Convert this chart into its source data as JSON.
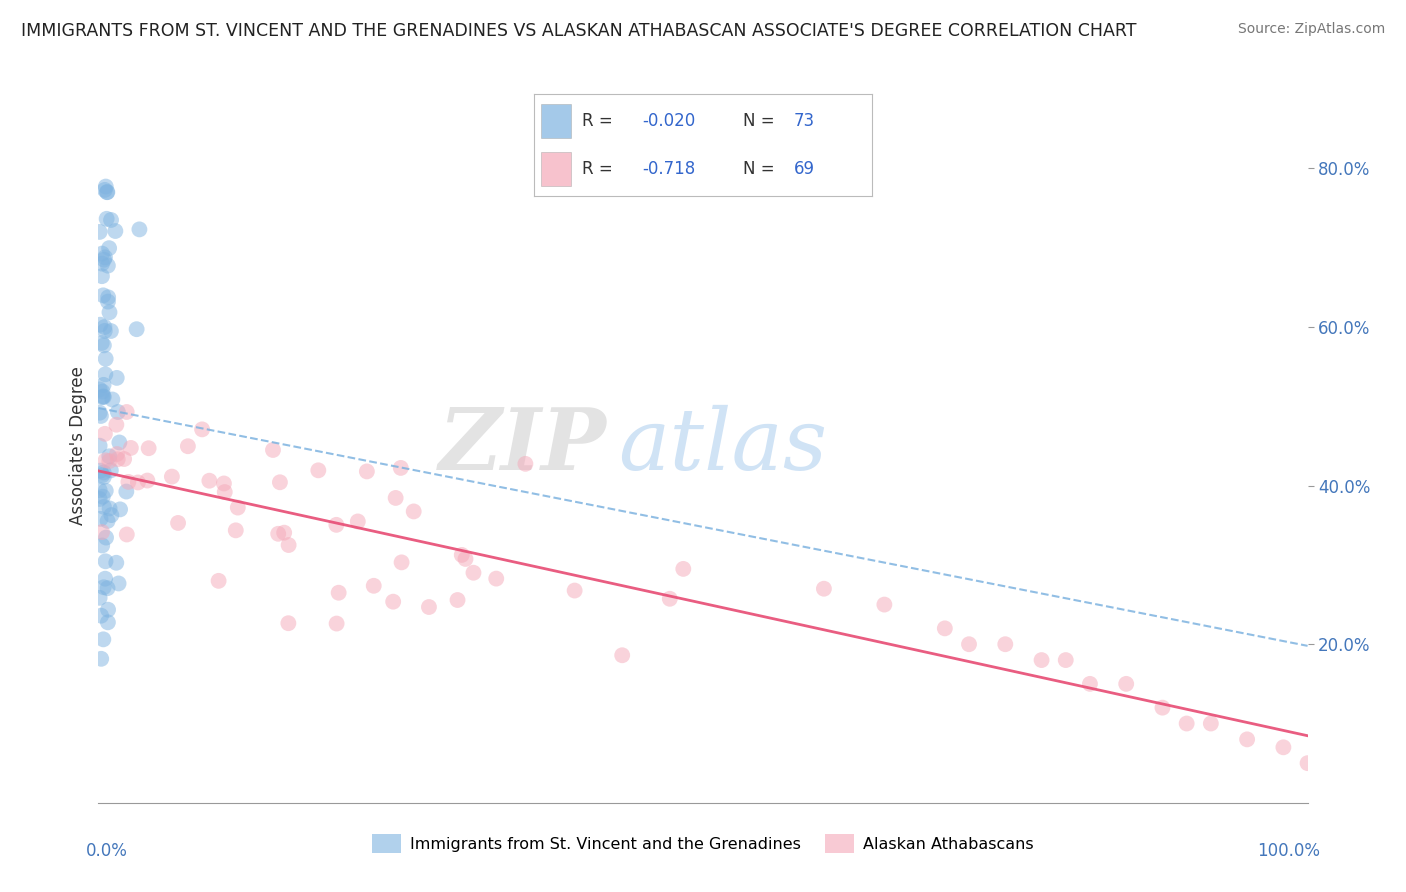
{
  "title": "IMMIGRANTS FROM ST. VINCENT AND THE GRENADINES VS ALASKAN ATHABASCAN ASSOCIATE'S DEGREE CORRELATION CHART",
  "source": "Source: ZipAtlas.com",
  "ylabel": "Associate's Degree",
  "legend_blue_R": "-0.020",
  "legend_blue_N": "73",
  "legend_pink_R": "-0.718",
  "legend_pink_N": "69",
  "legend_blue_label": "Immigrants from St. Vincent and the Grenadines",
  "legend_pink_label": "Alaskan Athabascans",
  "blue_color": "#7EB3E0",
  "pink_color": "#F4A8B8",
  "blue_line_color": "#7EB3E0",
  "pink_line_color": "#E8547A",
  "bg_color": "#FFFFFF",
  "grid_color": "#CCCCCC",
  "watermark_zip": "ZIP",
  "watermark_atlas": "atlas",
  "xlim": [
    0.0,
    1.0
  ],
  "ylim": [
    0.0,
    0.9
  ],
  "right_yticks": [
    0.2,
    0.4,
    0.6,
    0.8
  ],
  "right_yticklabels": [
    "20.0%",
    "40.0%",
    "60.0%",
    "80.0%"
  ]
}
